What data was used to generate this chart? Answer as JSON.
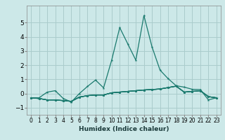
{
  "xlabel": "Humidex (Indice chaleur)",
  "xlim": [
    -0.5,
    23.5
  ],
  "ylim": [
    -1.5,
    6.2
  ],
  "yticks": [
    -1,
    0,
    1,
    2,
    3,
    4,
    5
  ],
  "xticks": [
    0,
    1,
    2,
    3,
    4,
    5,
    6,
    7,
    8,
    9,
    10,
    11,
    12,
    13,
    14,
    15,
    16,
    17,
    18,
    19,
    20,
    21,
    22,
    23
  ],
  "bg_color": "#cce8e8",
  "grid_color": "#aacccc",
  "line_color": "#1a7a6e",
  "lines": [
    {
      "x": [
        0,
        1,
        2,
        3,
        4,
        5,
        6,
        7,
        8,
        9,
        10,
        11,
        12,
        13,
        14,
        15,
        16,
        17,
        18,
        19,
        20,
        21,
        22,
        23
      ],
      "y": [
        -0.3,
        -0.35,
        -0.45,
        -0.45,
        -0.5,
        -0.55,
        -0.25,
        -0.15,
        -0.1,
        -0.1,
        0.05,
        0.1,
        0.15,
        0.2,
        0.25,
        0.28,
        0.32,
        0.42,
        0.52,
        0.1,
        0.15,
        0.2,
        -0.22,
        -0.3
      ]
    },
    {
      "x": [
        0,
        1,
        2,
        3,
        4,
        5,
        6,
        7,
        8,
        9,
        10,
        11,
        12,
        13,
        14,
        15,
        16,
        17,
        18,
        19,
        20,
        21,
        22,
        23
      ],
      "y": [
        -0.3,
        -0.35,
        -0.45,
        -0.45,
        -0.5,
        -0.55,
        -0.25,
        -0.15,
        -0.1,
        -0.1,
        0.05,
        0.1,
        0.15,
        0.2,
        0.25,
        0.28,
        0.32,
        0.42,
        0.52,
        0.1,
        0.15,
        0.2,
        -0.22,
        -0.3
      ]
    },
    {
      "x": [
        0,
        1,
        2,
        3,
        4,
        5,
        6,
        7,
        8,
        9,
        10,
        11,
        12,
        13,
        14,
        15,
        16,
        17,
        18,
        19,
        20,
        21,
        22,
        23
      ],
      "y": [
        -0.3,
        -0.35,
        -0.45,
        -0.45,
        -0.5,
        -0.55,
        -0.25,
        -0.15,
        -0.1,
        -0.1,
        0.05,
        0.1,
        0.15,
        0.2,
        0.25,
        0.28,
        0.32,
        0.42,
        0.52,
        0.1,
        0.15,
        0.2,
        -0.22,
        -0.3
      ]
    },
    {
      "x": [
        0,
        1,
        2,
        3,
        4,
        5,
        6,
        7,
        8,
        9,
        10,
        11,
        12,
        13,
        14,
        15,
        16,
        17,
        18,
        19,
        20,
        21,
        22,
        23
      ],
      "y": [
        -0.3,
        -0.35,
        -0.45,
        -0.45,
        -0.5,
        -0.55,
        -0.25,
        -0.15,
        -0.1,
        -0.1,
        0.05,
        0.1,
        0.15,
        0.2,
        0.25,
        0.28,
        0.32,
        0.42,
        0.52,
        0.1,
        0.15,
        0.2,
        -0.22,
        -0.3
      ]
    },
    {
      "x": [
        0,
        1,
        2,
        3,
        4,
        5,
        6,
        7,
        8,
        9,
        10,
        11,
        12,
        13,
        14,
        15,
        16,
        17,
        18,
        19,
        20,
        21,
        22,
        23
      ],
      "y": [
        -0.3,
        -0.3,
        0.1,
        0.2,
        -0.35,
        -0.6,
        0.0,
        0.5,
        0.95,
        0.4,
        2.35,
        4.65,
        3.5,
        2.35,
        5.5,
        3.3,
        1.65,
        1.05,
        0.55,
        0.45,
        0.3,
        0.28,
        -0.45,
        -0.3
      ]
    }
  ]
}
